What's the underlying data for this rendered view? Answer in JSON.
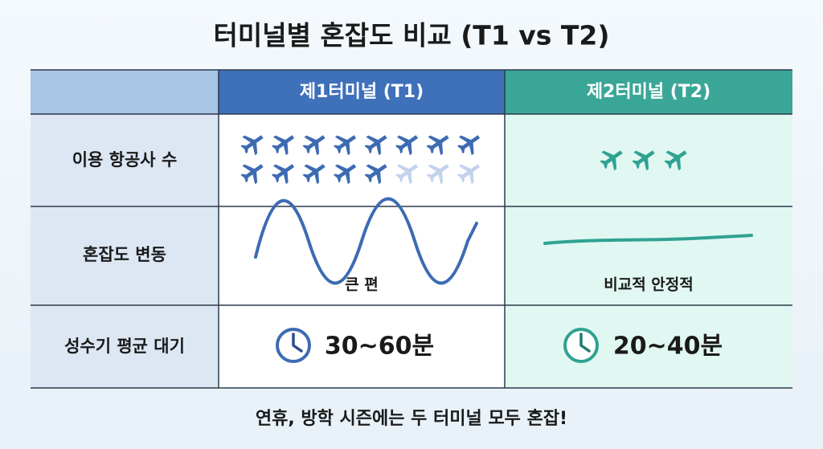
{
  "title": "터미널별 혼잡도 비교 (T1 vs T2)",
  "table": {
    "header": [
      "제1터미널 (T1)",
      "제2터미널 (T2)"
    ],
    "rows": [
      {
        "label": "이용 항공사 수",
        "t1": {
          "planes": 13,
          "faded_planes": 3
        },
        "t2": {
          "planes": 3
        }
      },
      {
        "label": "혼잡도 변동",
        "t1": "큰 편",
        "t2": "비교적 안정적"
      },
      {
        "label": "성수기 평균 대기",
        "t1": "30~60분",
        "t2": "20~40분"
      }
    ]
  },
  "footer": "연휴, 방학 시즌에는 두 터미널 모두 혼잡!"
}
